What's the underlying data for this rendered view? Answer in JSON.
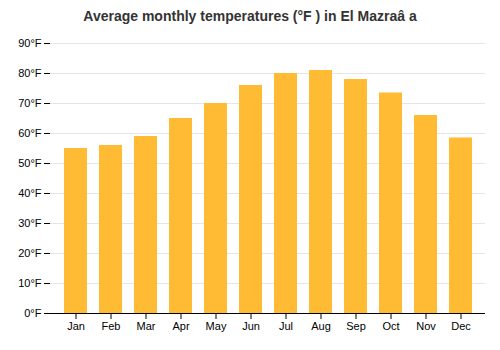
{
  "chart_data": {
    "type": "bar",
    "title": "Average monthly temperatures (°F ) in El Mazraâ a",
    "categories": [
      "Jan",
      "Feb",
      "Mar",
      "Apr",
      "May",
      "Jun",
      "Jul",
      "Aug",
      "Sep",
      "Oct",
      "Nov",
      "Dec"
    ],
    "values": [
      55,
      56,
      59,
      65,
      70,
      76,
      80,
      81,
      78,
      73.5,
      66,
      58.5
    ],
    "color": "#FFBB33",
    "ylim": [
      0,
      90
    ],
    "yticks": [
      {
        "value": 0,
        "label": "0°F"
      },
      {
        "value": 10,
        "label": "10°F"
      },
      {
        "value": 20,
        "label": "20°F"
      },
      {
        "value": 30,
        "label": "30°F"
      },
      {
        "value": 40,
        "label": "40°F"
      },
      {
        "value": 50,
        "label": "50°F"
      },
      {
        "value": 60,
        "label": "60°F"
      },
      {
        "value": 70,
        "label": "70°F"
      },
      {
        "value": 80,
        "label": "80°F"
      },
      {
        "value": 90,
        "label": "90°F"
      }
    ],
    "grid": true
  }
}
